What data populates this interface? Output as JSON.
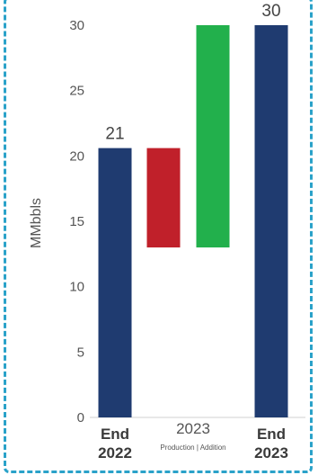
{
  "chart_data": {
    "type": "bar",
    "subtype": "waterfall",
    "ylabel": "MMbbls",
    "ylim": [
      0,
      30
    ],
    "yticks": [
      0,
      5,
      10,
      15,
      20,
      25,
      30
    ],
    "bars": [
      {
        "base": 0,
        "top": 20.6,
        "color": "#1f3b70",
        "data_label": "21"
      },
      {
        "base": 13.0,
        "top": 20.6,
        "color": "#c0202a"
      },
      {
        "base": 13.0,
        "top": 30.0,
        "color": "#22b04c"
      },
      {
        "base": 0,
        "top": 30.0,
        "color": "#1f3b70",
        "data_label": "30"
      }
    ],
    "categories": [
      {
        "lines": [
          "End",
          "2022"
        ]
      },
      {
        "lines": [
          "2023"
        ],
        "sublabel": "Production | Addition"
      },
      {
        "lines": [
          "End",
          "2023"
        ]
      }
    ]
  }
}
